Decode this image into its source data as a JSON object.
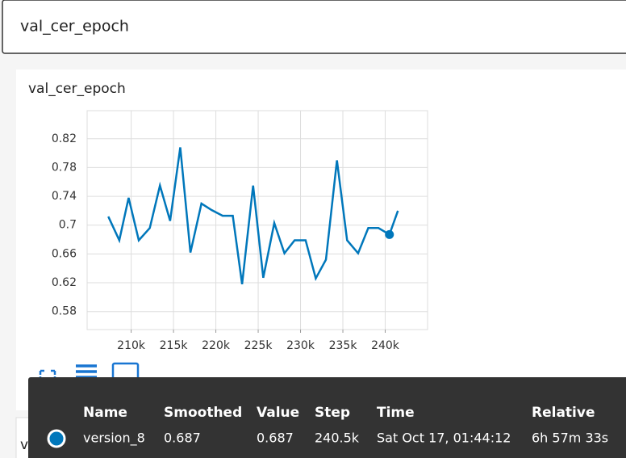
{
  "search": {
    "query": "val_cer_epoch"
  },
  "card": {
    "title": "val_cer_epoch"
  },
  "chart_data": {
    "type": "line",
    "x": [
      207300,
      208600,
      209700,
      210900,
      212200,
      213400,
      214600,
      215800,
      217000,
      218300,
      219500,
      220800,
      222000,
      223100,
      224400,
      225600,
      226900,
      228100,
      229300,
      230600,
      231800,
      233000,
      234300,
      235500,
      236800,
      238000,
      239200,
      240500,
      241500
    ],
    "series": [
      {
        "color": "#0077bb",
        "values": [
          0.712,
          0.679,
          0.738,
          0.679,
          0.696,
          0.755,
          0.706,
          0.808,
          0.662,
          0.73,
          0.721,
          0.713,
          0.713,
          0.618,
          0.755,
          0.627,
          0.703,
          0.661,
          0.679,
          0.679,
          0.626,
          0.652,
          0.79,
          0.679,
          0.661,
          0.696,
          0.696,
          0.687,
          0.72
        ]
      }
    ],
    "xlim": [
      204800,
      245000
    ],
    "ylim": [
      0.555,
      0.859
    ],
    "xticks": [
      {
        "value": 210000,
        "label": "210k"
      },
      {
        "value": 215000,
        "label": "215k"
      },
      {
        "value": 220000,
        "label": "220k"
      },
      {
        "value": 225000,
        "label": "225k"
      },
      {
        "value": 230000,
        "label": "230k"
      },
      {
        "value": 235000,
        "label": "235k"
      },
      {
        "value": 240000,
        "label": "240k"
      }
    ],
    "yticks": [
      0.58,
      0.62,
      0.66,
      0.7,
      0.74,
      0.78,
      0.82
    ],
    "grid": true,
    "highlight_index": 27
  },
  "tooltip": {
    "columns": [
      "Name",
      "Smoothed",
      "Value",
      "Step",
      "Time",
      "Relative"
    ],
    "rows": [
      [
        "version_8",
        "0.687",
        "0.687",
        "240.5k",
        "Sat Oct 17, 01:44:12",
        "6h 57m 33s"
      ]
    ]
  },
  "next_card": {
    "title": "val_cer_step"
  }
}
